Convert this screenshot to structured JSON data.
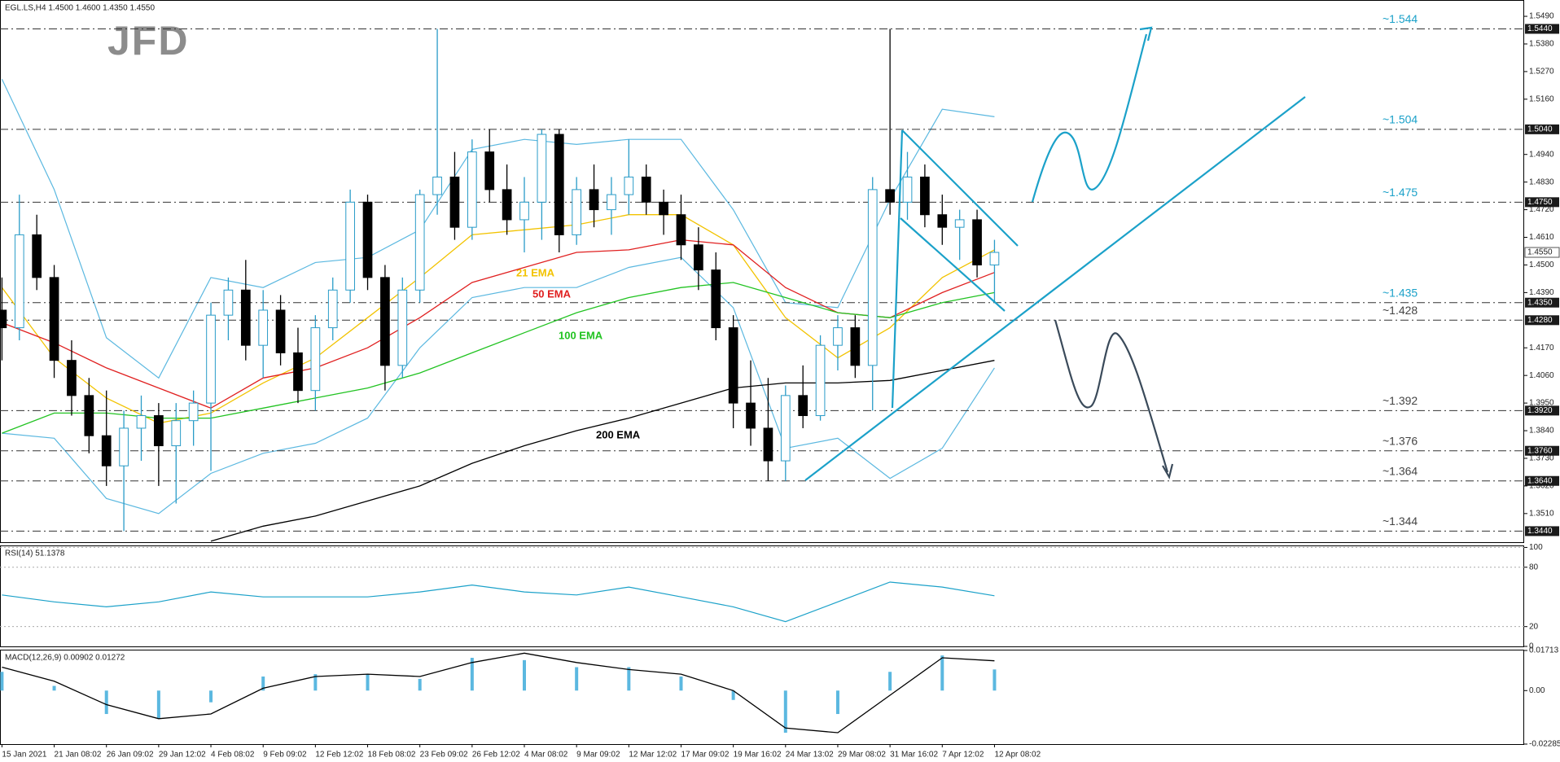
{
  "chart_data": [
    {
      "type": "candlestick",
      "title": "EGL.LS,H4 1.4500 1.4600 1.4350 1.4550",
      "logo": "JFD",
      "categories": [
        "15 Jan 2021",
        "21 Jan 08:02",
        "26 Jan 09:02",
        "29 Jan 12:02",
        "4 Feb 08:02",
        "9 Feb 09:02",
        "12 Feb 12:02",
        "18 Feb 08:02",
        "23 Feb 09:02",
        "26 Feb 12:02",
        "4 Mar 08:02",
        "9 Mar 09:02",
        "12 Mar 12:02",
        "17 Mar 09:02",
        "19 Mar 16:02",
        "24 Mar 13:02",
        "29 Mar 08:02",
        "31 Mar 16:02",
        "7 Apr 12:02",
        "12 Apr 08:02"
      ],
      "open": [
        1.432,
        1.425,
        1.462,
        1.445,
        1.412,
        1.398,
        1.382,
        1.37,
        1.385,
        1.39,
        1.378,
        1.388,
        1.395,
        1.43,
        1.44,
        1.418,
        1.432,
        1.415,
        1.4,
        1.425,
        1.44,
        1.475,
        1.445,
        1.41,
        1.44,
        1.478,
        1.485,
        1.465,
        1.495,
        1.48,
        1.468,
        1.475,
        1.502,
        1.462,
        1.48,
        1.472,
        1.478,
        1.485,
        1.475,
        1.47,
        1.458,
        1.448,
        1.425,
        1.395,
        1.385,
        1.372,
        1.398,
        1.39,
        1.418,
        1.425,
        1.41,
        1.48,
        1.475,
        1.485,
        1.47,
        1.465,
        1.468,
        1.45
      ],
      "high": [
        1.445,
        1.478,
        1.47,
        1.45,
        1.42,
        1.405,
        1.4,
        1.392,
        1.398,
        1.395,
        1.395,
        1.4,
        1.435,
        1.445,
        1.452,
        1.44,
        1.438,
        1.425,
        1.43,
        1.445,
        1.48,
        1.478,
        1.45,
        1.445,
        1.48,
        1.544,
        1.495,
        1.5,
        1.504,
        1.49,
        1.485,
        1.504,
        1.504,
        1.485,
        1.49,
        1.485,
        1.5,
        1.49,
        1.48,
        1.478,
        1.465,
        1.455,
        1.43,
        1.412,
        1.405,
        1.402,
        1.41,
        1.422,
        1.43,
        1.43,
        1.485,
        1.544,
        1.495,
        1.49,
        1.478,
        1.472,
        1.472,
        1.46
      ],
      "low": [
        1.412,
        1.42,
        1.44,
        1.405,
        1.39,
        1.375,
        1.362,
        1.344,
        1.372,
        1.362,
        1.355,
        1.378,
        1.368,
        1.42,
        1.412,
        1.405,
        1.41,
        1.395,
        1.392,
        1.42,
        1.435,
        1.44,
        1.4,
        1.405,
        1.435,
        1.47,
        1.46,
        1.46,
        1.475,
        1.462,
        1.455,
        1.46,
        1.455,
        1.458,
        1.465,
        1.462,
        1.47,
        1.47,
        1.462,
        1.452,
        1.44,
        1.42,
        1.385,
        1.378,
        1.364,
        1.364,
        1.385,
        1.388,
        1.408,
        1.405,
        1.392,
        1.47,
        1.468,
        1.465,
        1.458,
        1.452,
        1.445,
        1.435
      ],
      "close": [
        1.425,
        1.462,
        1.445,
        1.412,
        1.398,
        1.382,
        1.37,
        1.385,
        1.39,
        1.378,
        1.388,
        1.395,
        1.43,
        1.44,
        1.418,
        1.432,
        1.415,
        1.4,
        1.425,
        1.44,
        1.475,
        1.445,
        1.41,
        1.44,
        1.478,
        1.485,
        1.465,
        1.495,
        1.48,
        1.468,
        1.475,
        1.502,
        1.462,
        1.48,
        1.472,
        1.478,
        1.485,
        1.475,
        1.47,
        1.458,
        1.448,
        1.425,
        1.395,
        1.385,
        1.372,
        1.398,
        1.39,
        1.418,
        1.425,
        1.41,
        1.48,
        1.475,
        1.485,
        1.47,
        1.465,
        1.468,
        1.45,
        1.455
      ],
      "up_color": "#ffffff",
      "down_color": "#000000",
      "outline_color": "#2a9cc8",
      "ylim": [
        1.3396,
        1.5555
      ],
      "yticks": [
        {
          "value": 1.549,
          "label": "1.5490"
        },
        {
          "value": 1.538,
          "label": "1.5380"
        },
        {
          "value": 1.527,
          "label": "1.5270"
        },
        {
          "value": 1.516,
          "label": "1.5160"
        },
        {
          "value": 1.494,
          "label": "1.4940"
        },
        {
          "value": 1.483,
          "label": "1.4830"
        },
        {
          "value": 1.472,
          "label": "1.4720"
        },
        {
          "value": 1.461,
          "label": "1.4610"
        },
        {
          "value": 1.45,
          "label": "1.4500"
        },
        {
          "value": 1.439,
          "label": "1.4390"
        },
        {
          "value": 1.417,
          "label": "1.4170"
        },
        {
          "value": 1.406,
          "label": "1.4060"
        },
        {
          "value": 1.395,
          "label": "1.3950"
        },
        {
          "value": 1.384,
          "label": "1.3840"
        },
        {
          "value": 1.373,
          "label": "1.3730"
        },
        {
          "value": 1.362,
          "label": "1.3620"
        },
        {
          "value": 1.351,
          "label": "1.3510"
        }
      ],
      "levels": [
        {
          "value": 1.544,
          "label": "~1.544",
          "axis_label": "1.5440",
          "color": "#1ba1c9"
        },
        {
          "value": 1.504,
          "label": "~1.504",
          "axis_label": "1.5040",
          "color": "#1ba1c9"
        },
        {
          "value": 1.475,
          "label": "~1.475",
          "axis_label": "1.4750",
          "color": "#1ba1c9"
        },
        {
          "value": 1.435,
          "label": "~1.435",
          "axis_label": "1.4350",
          "color": "#1ba1c9"
        },
        {
          "value": 1.428,
          "label": "~1.428",
          "axis_label": "1.4280",
          "color": "#444444"
        },
        {
          "value": 1.392,
          "label": "~1.392",
          "axis_label": "1.3920",
          "color": "#444444"
        },
        {
          "value": 1.376,
          "label": "~1.376",
          "axis_label": "1.3760",
          "color": "#444444"
        },
        {
          "value": 1.364,
          "label": "~1.364",
          "axis_label": "1.3640",
          "color": "#444444"
        },
        {
          "value": 1.344,
          "label": "~1.344",
          "axis_label": "1.3440",
          "color": "#444444"
        }
      ],
      "current_price": {
        "value": 1.455,
        "label": "1.4550"
      },
      "series": [
        {
          "name": "21 EMA",
          "color": "#f2c300",
          "values": [
            1.441,
            1.413,
            1.397,
            1.387,
            1.391,
            1.403,
            1.413,
            1.429,
            1.445,
            1.462,
            1.464,
            1.466,
            1.47,
            1.47,
            1.458,
            1.429,
            1.413,
            1.425,
            1.445,
            1.456
          ]
        },
        {
          "name": "50 EMA",
          "color": "#e02020",
          "values": [
            1.427,
            1.419,
            1.409,
            1.401,
            1.393,
            1.405,
            1.409,
            1.417,
            1.429,
            1.443,
            1.449,
            1.455,
            1.456,
            1.46,
            1.458,
            1.441,
            1.431,
            1.429,
            1.439,
            1.447
          ]
        },
        {
          "name": "100 EMA",
          "color": "#22c322",
          "values": [
            1.383,
            1.391,
            1.391,
            1.389,
            1.389,
            1.393,
            1.397,
            1.401,
            1.407,
            1.415,
            1.423,
            1.431,
            1.437,
            1.441,
            1.443,
            1.437,
            1.431,
            1.429,
            1.435,
            1.439
          ]
        },
        {
          "name": "200 EMA",
          "color": "#000000",
          "values": [
            null,
            null,
            null,
            null,
            1.34,
            1.346,
            1.35,
            1.356,
            1.362,
            1.371,
            1.378,
            1.384,
            1.389,
            1.395,
            1.401,
            1.403,
            1.403,
            1.404,
            1.408,
            1.412
          ]
        }
      ],
      "bands": {
        "color": "#5bb8e0",
        "upper": [
          1.524,
          1.48,
          1.421,
          1.405,
          1.445,
          1.441,
          1.451,
          1.453,
          1.464,
          1.496,
          1.5,
          1.498,
          1.5,
          1.5,
          1.472,
          1.435,
          1.433,
          1.476,
          1.512,
          1.509
        ],
        "lower": [
          1.383,
          1.381,
          1.357,
          1.351,
          1.367,
          1.375,
          1.379,
          1.389,
          1.417,
          1.437,
          1.441,
          1.441,
          1.449,
          1.453,
          1.433,
          1.377,
          1.381,
          1.365,
          1.377,
          1.409
        ]
      }
    },
    {
      "type": "line",
      "title": "RSI(14) 51.1378",
      "series": [
        {
          "color": "#1ba1c9",
          "values": [
            52,
            45,
            40,
            45,
            55,
            50,
            50,
            50,
            55,
            62,
            55,
            52,
            60,
            50,
            40,
            25,
            45,
            65,
            60,
            51.1378
          ]
        }
      ],
      "ylim": [
        0,
        102
      ],
      "yticks": [
        100,
        80,
        20,
        0
      ]
    },
    {
      "type": "histogram-line",
      "title": "MACD(12,26,9) 0.00902 0.01272",
      "histogram": {
        "color": "#5bb8e0",
        "values": [
          0.008,
          0.002,
          -0.01,
          -0.012,
          -0.005,
          0.006,
          0.007,
          0.007,
          0.005,
          0.014,
          0.013,
          0.01,
          0.01,
          0.006,
          -0.004,
          -0.018,
          -0.01,
          0.008,
          0.015,
          0.00902
        ]
      },
      "signal": {
        "color": "#000000",
        "values": [
          0.01,
          0.004,
          -0.006,
          -0.012,
          -0.01,
          0.001,
          0.006,
          0.007,
          0.006,
          0.012,
          0.016,
          0.012,
          0.009,
          0.007,
          0.0,
          -0.016,
          -0.018,
          -0.002,
          0.014,
          0.01272
        ]
      },
      "ylim": [
        -0.02285,
        0.01713
      ],
      "yticks": [
        0.01713,
        {
          "value": 0,
          "label": "0.00"
        },
        -0.02285
      ]
    }
  ]
}
